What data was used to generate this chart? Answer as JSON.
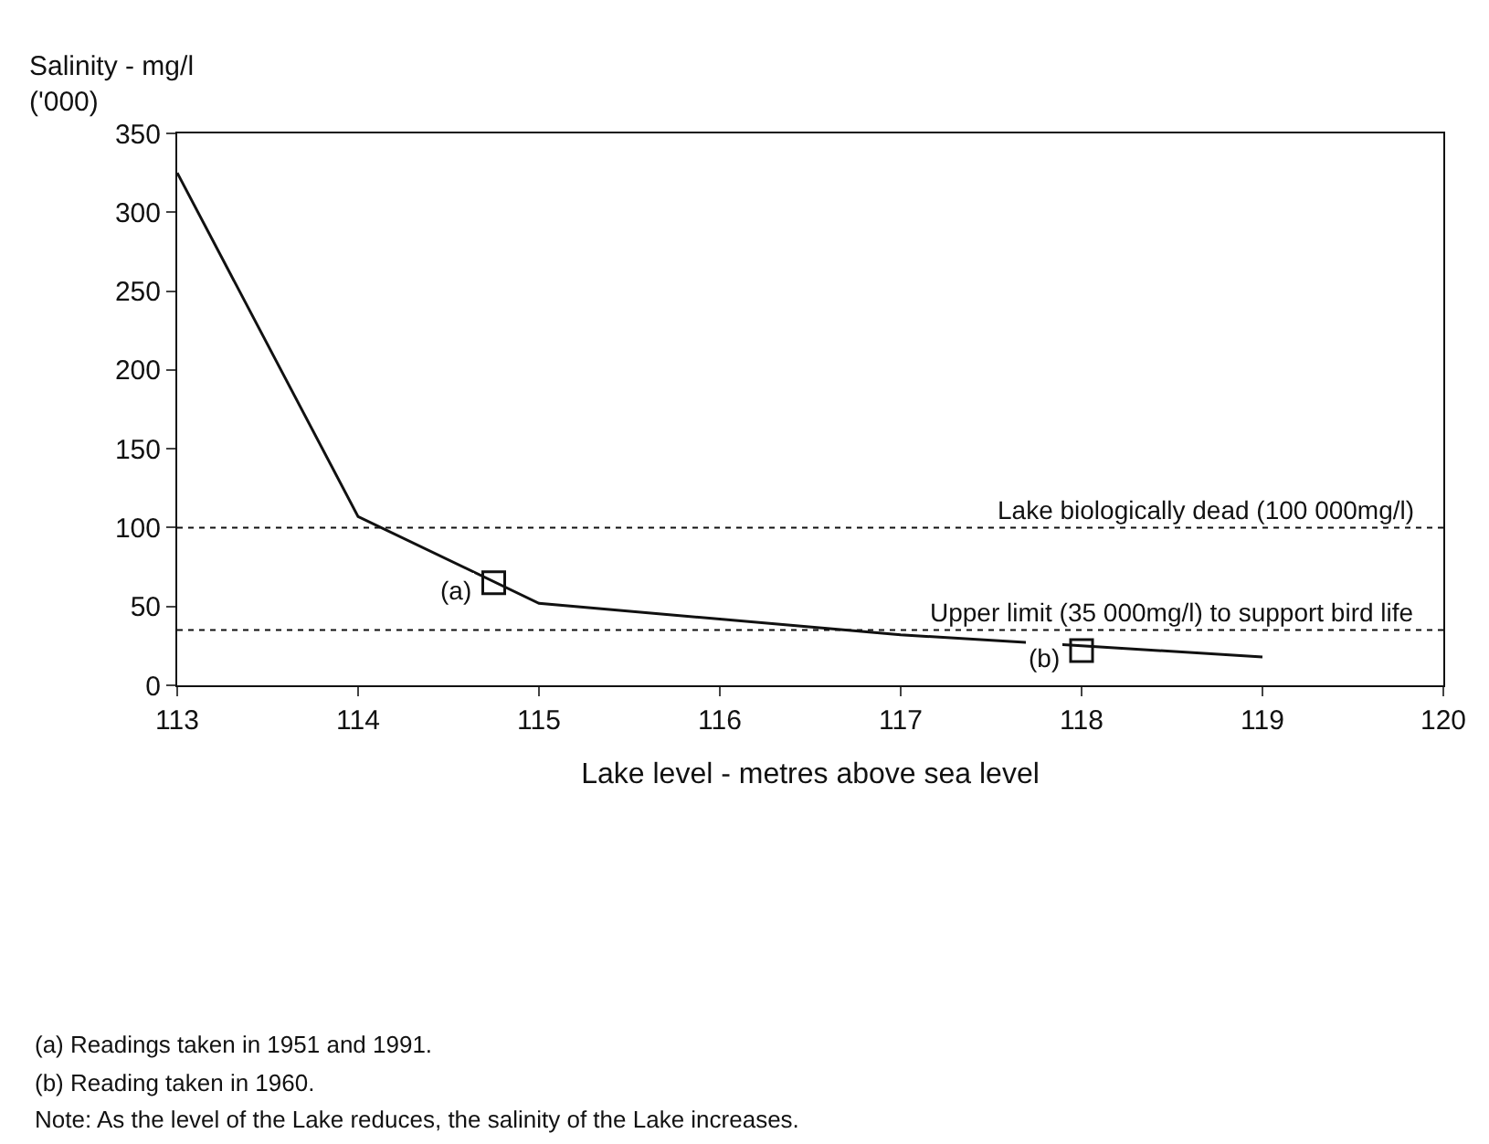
{
  "chart_data": {
    "type": "line",
    "ylabel": "Salinity - mg/l\n('000)",
    "xlabel": "Lake level - metres above sea level",
    "series": [
      {
        "color": "#111111",
        "marker": "none",
        "line_style": "solid",
        "x": [
          113,
          114,
          115,
          116,
          117,
          118,
          119
        ],
        "values": [
          325,
          107,
          52,
          42,
          32,
          25,
          18
        ]
      },
      {
        "type": "scatter",
        "color": "#111111",
        "marker": "square",
        "x": [
          114.75,
          118
        ],
        "values": [
          65,
          22
        ]
      }
    ],
    "xlim": [
      113,
      120
    ],
    "xticks": [
      113,
      114,
      115,
      116,
      117,
      118,
      119,
      120
    ],
    "ylim": [
      0,
      350
    ],
    "yticks": [
      0,
      50,
      100,
      150,
      200,
      250,
      300,
      350
    ],
    "ref_lines": [
      {
        "axis": "y",
        "value": 100,
        "label": "Lake biologically dead (100 000mg/l)",
        "line_style": "dotted",
        "color": "#111111"
      },
      {
        "axis": "y",
        "value": 35,
        "label": "Upper limit (35 000mg/l) to support bird life",
        "line_style": "dotted",
        "color": "#111111"
      }
    ],
    "annotations": [
      {
        "text": "(a)",
        "x": 114.75,
        "y": 65
      },
      {
        "text": "(b)",
        "x": 118,
        "y": 22
      },
      "(a) Readings taken in 1951 and 1991.",
      "(b) Reading taken in 1960.",
      "Note: As the level of the Lake reduces, the salinity of the Lake increases."
    ]
  }
}
